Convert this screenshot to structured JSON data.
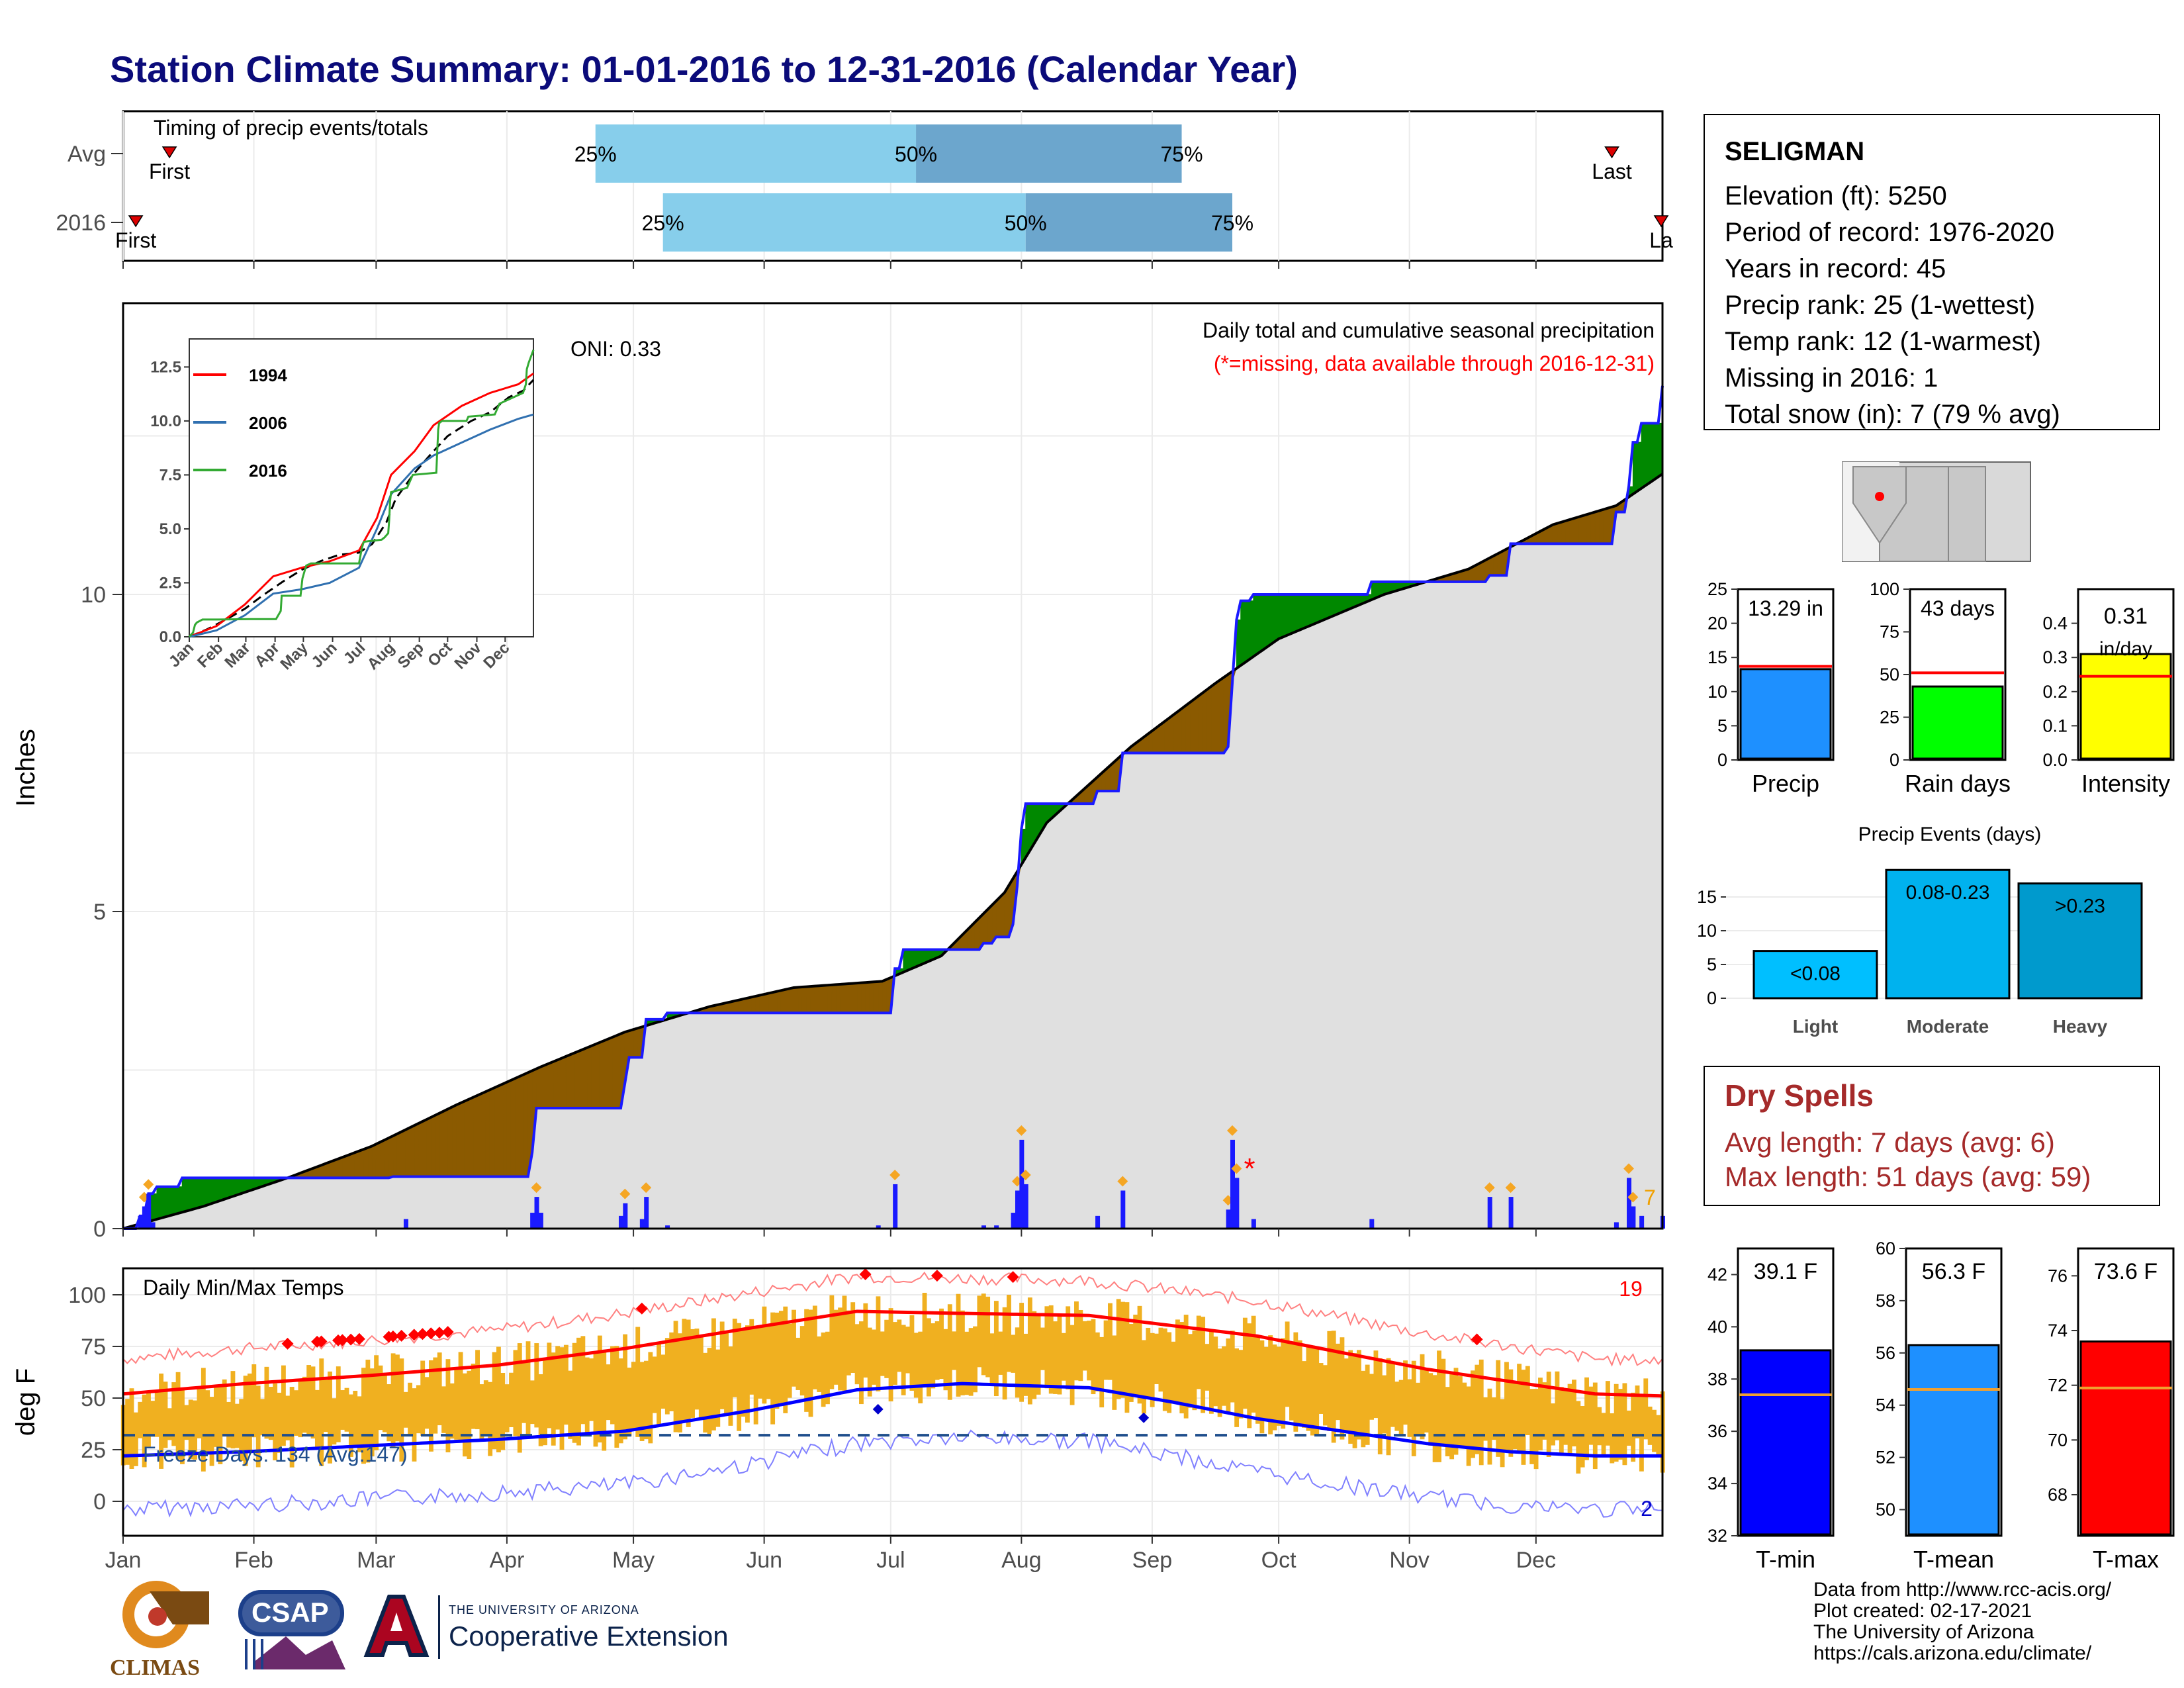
{
  "title": "Station Climate Summary: 01-01-2016 to 12-31-2016 (Calendar Year)",
  "colors": {
    "title": "#0b0b7a",
    "brown": "#8b5a00",
    "green": "#008800",
    "blue": "#1a1aff",
    "fill_gray": "#e0e0e0",
    "orange": "#f0b020",
    "light_blue": "#87ceeb",
    "steel": "#6ca6cd",
    "red": "#ff0000"
  },
  "timing": {
    "title": "Timing of precip events/totals",
    "rows": [
      {
        "label": "Avg",
        "first_label": "First",
        "last_label": "Last",
        "first_doy": 12,
        "last_doy": 354,
        "p25": 113,
        "p50": 189,
        "p75": 252
      },
      {
        "label": "2016",
        "first_label": "First",
        "last_label": "La",
        "first_doy": 4,
        "last_doy": 366,
        "p25": 129,
        "p50": 215,
        "p75": 264
      }
    ],
    "pct_labels": [
      "25%",
      "50%",
      "75%"
    ]
  },
  "precip": {
    "ylabel": "Inches",
    "y_ticks": [
      0,
      5,
      10
    ],
    "oni": "ONI: 0.33",
    "subtitle": "Daily total and cumulative seasonal precipitation",
    "missing_note": "(*=missing, data available through 2016-12-31)",
    "snow_label": "7",
    "cumulative_2016": [
      [
        1,
        0
      ],
      [
        5,
        0.2
      ],
      [
        7,
        0.55
      ],
      [
        9,
        0.66
      ],
      [
        15,
        0.8
      ],
      [
        32,
        0.8
      ],
      [
        65,
        0.82
      ],
      [
        93,
        0.82
      ],
      [
        98,
        1.2
      ],
      [
        99,
        1.9
      ],
      [
        119,
        1.9
      ],
      [
        120,
        2.3
      ],
      [
        121,
        2.7
      ],
      [
        125,
        3.3
      ],
      [
        130,
        3.4
      ],
      [
        181,
        3.4
      ],
      [
        184,
        4.1
      ],
      [
        186,
        4.4
      ],
      [
        205,
        4.5
      ],
      [
        208,
        4.6
      ],
      [
        212,
        4.8
      ],
      [
        213,
        5.4
      ],
      [
        214,
        6.3
      ],
      [
        215,
        6.7
      ],
      [
        232,
        6.9
      ],
      [
        238,
        7.5
      ],
      [
        263,
        7.6
      ],
      [
        264,
        8.6
      ],
      [
        265,
        9.6
      ],
      [
        266,
        9.9
      ],
      [
        269,
        10.0
      ],
      [
        295,
        10.0
      ],
      [
        297,
        10.2
      ],
      [
        325,
        10.3
      ],
      [
        330,
        10.8
      ],
      [
        355,
        11.3
      ],
      [
        358,
        11.7
      ],
      [
        359,
        12.4
      ],
      [
        361,
        12.7
      ],
      [
        366,
        13.29
      ]
    ],
    "cumulative_avg": [
      [
        1,
        0
      ],
      [
        20,
        0.35
      ],
      [
        40,
        0.8
      ],
      [
        60,
        1.3
      ],
      [
        80,
        1.95
      ],
      [
        100,
        2.55
      ],
      [
        120,
        3.1
      ],
      [
        140,
        3.5
      ],
      [
        160,
        3.8
      ],
      [
        181,
        3.9
      ],
      [
        195,
        4.3
      ],
      [
        210,
        5.3
      ],
      [
        220,
        6.4
      ],
      [
        240,
        7.6
      ],
      [
        260,
        8.6
      ],
      [
        275,
        9.3
      ],
      [
        300,
        10.0
      ],
      [
        320,
        10.4
      ],
      [
        340,
        11.1
      ],
      [
        355,
        11.4
      ],
      [
        366,
        11.9
      ]
    ],
    "daily_bars": [
      [
        5,
        0.2
      ],
      [
        6,
        0.35
      ],
      [
        7,
        0.55
      ],
      [
        8,
        0.1
      ],
      [
        68,
        0.15
      ],
      [
        98,
        0.25
      ],
      [
        99,
        0.5
      ],
      [
        100,
        0.25
      ],
      [
        119,
        0.2
      ],
      [
        120,
        0.4
      ],
      [
        124,
        0.15
      ],
      [
        125,
        0.5
      ],
      [
        130,
        0.05
      ],
      [
        180,
        0.05
      ],
      [
        184,
        0.7
      ],
      [
        205,
        0.05
      ],
      [
        208,
        0.05
      ],
      [
        212,
        0.25
      ],
      [
        213,
        0.6
      ],
      [
        214,
        1.4
      ],
      [
        215,
        0.7
      ],
      [
        232,
        0.2
      ],
      [
        238,
        0.6
      ],
      [
        263,
        0.3
      ],
      [
        264,
        1.4
      ],
      [
        265,
        0.8
      ],
      [
        269,
        0.15
      ],
      [
        297,
        0.15
      ],
      [
        325,
        0.5
      ],
      [
        330,
        0.5
      ],
      [
        355,
        0.1
      ],
      [
        358,
        0.8
      ],
      [
        359,
        0.35
      ],
      [
        361,
        0.2
      ],
      [
        366,
        0.2
      ]
    ]
  },
  "inset": {
    "y_ticks": [
      "0.0",
      "2.5",
      "5.0",
      "7.5",
      "10.0",
      "12.5"
    ],
    "months": [
      "Jan",
      "Feb",
      "Mar",
      "Apr",
      "May",
      "Jun",
      "Jul",
      "Aug",
      "Sep",
      "Oct",
      "Nov",
      "Dec"
    ],
    "legend": [
      {
        "name": "1994",
        "color": "#ff0000"
      },
      {
        "name": "2006",
        "color": "#3070b0"
      },
      {
        "name": "2016",
        "color": "#33aa33"
      }
    ]
  },
  "temps": {
    "ylabel": "deg F",
    "title": "Daily Min/Max Temps",
    "freeze": "Freeze Days: 134 (Avg:147)",
    "hot_count": "19",
    "cold_count": "2",
    "y_ticks": [
      0,
      25,
      50,
      75,
      100
    ],
    "freeze_line": 32,
    "avg_max": [
      [
        1,
        52
      ],
      [
        30,
        57
      ],
      [
        60,
        61
      ],
      [
        90,
        66
      ],
      [
        120,
        74
      ],
      [
        150,
        84
      ],
      [
        175,
        92
      ],
      [
        200,
        91
      ],
      [
        230,
        90
      ],
      [
        250,
        85
      ],
      [
        270,
        80
      ],
      [
        290,
        72
      ],
      [
        310,
        64
      ],
      [
        330,
        58
      ],
      [
        350,
        52
      ],
      [
        366,
        51
      ]
    ],
    "avg_min": [
      [
        1,
        22
      ],
      [
        30,
        24
      ],
      [
        60,
        27
      ],
      [
        90,
        30
      ],
      [
        120,
        34
      ],
      [
        150,
        44
      ],
      [
        175,
        54
      ],
      [
        200,
        57
      ],
      [
        230,
        55
      ],
      [
        250,
        48
      ],
      [
        270,
        40
      ],
      [
        290,
        34
      ],
      [
        310,
        28
      ],
      [
        330,
        24
      ],
      [
        350,
        22
      ],
      [
        366,
        22
      ]
    ]
  },
  "months_axis": [
    "Jan",
    "Feb",
    "Mar",
    "Apr",
    "May",
    "Jun",
    "Jul",
    "Aug",
    "Sep",
    "Oct",
    "Nov",
    "Dec"
  ],
  "station": {
    "name": "SELIGMAN",
    "lines": [
      "Elevation (ft): 5250",
      "Period of record: 1976-2020",
      "Years in record: 45",
      "Precip rank: 25 (1-wettest)",
      "Temp rank: 12 (1-warmest)",
      "Missing in 2016: 1",
      "Total snow (in): 7 (79 % avg)"
    ]
  },
  "small_bars": [
    {
      "label": "Precip",
      "value_text": "13.29 in",
      "value": 13.29,
      "avg": 13.7,
      "ymax": 25,
      "ticks": [
        0,
        5,
        10,
        15,
        20,
        25
      ],
      "color": "#1e90ff"
    },
    {
      "label": "Rain days",
      "value_text": "43 days",
      "value": 43,
      "avg": 51,
      "ymax": 100,
      "ticks": [
        0,
        25,
        50,
        75,
        100
      ],
      "color": "#00ff00"
    },
    {
      "label": "Intensity",
      "value_text": "0.31 in/day",
      "value": 0.31,
      "avg": 0.245,
      "ymax": 0.5,
      "ticks": [
        "0.0",
        "0.1",
        "0.2",
        "0.3",
        "0.4"
      ],
      "color": "#ffff00"
    }
  ],
  "events": {
    "title": "Precip Events (days)",
    "bars": [
      {
        "label": "Light",
        "value_text": "<0.08",
        "value": 7,
        "color": "#00bfff"
      },
      {
        "label": "Moderate",
        "value_text": "0.08-0.23",
        "value": 19,
        "color": "#00b2ee"
      },
      {
        "label": "Heavy",
        "value_text": ">0.23",
        "value": 17,
        "color": "#009acd"
      }
    ],
    "ticks": [
      0,
      5,
      10,
      15
    ]
  },
  "dry": {
    "title": "Dry Spells",
    "avg": "Avg length: 7 days (avg: 6)",
    "max": "Max length: 51 days (avg: 59)"
  },
  "temp_bars": [
    {
      "label": "T-min",
      "value_text": "39.1 F",
      "value": 39.1,
      "avg": 37.4,
      "ymin": 32,
      "ymax": 43,
      "ticks": [
        32,
        34,
        36,
        38,
        40,
        42
      ],
      "color": "#0000ff"
    },
    {
      "label": "T-mean",
      "value_text": "56.3 F",
      "value": 56.3,
      "avg": 54.6,
      "ymin": 49,
      "ymax": 60,
      "ticks": [
        50,
        52,
        54,
        56,
        58,
        60
      ],
      "color": "#1e90ff"
    },
    {
      "label": "T-max",
      "value_text": "73.6 F",
      "value": 73.6,
      "avg": 71.9,
      "ymin": 66.5,
      "ymax": 77,
      "ticks": [
        68,
        70,
        72,
        74,
        76
      ],
      "color": "#ff0000"
    }
  ],
  "credits": [
    "Data from http://www.rcc-acis.org/",
    "Plot created: 02-17-2021",
    "The University of Arizona",
    "https://cals.arizona.edu/climate/"
  ],
  "logos": {
    "climas": "CLIMAS",
    "csap": "CSAP",
    "ua_small": "THE UNIVERSITY OF ARIZONA",
    "ua_big": "Cooperative Extension"
  }
}
